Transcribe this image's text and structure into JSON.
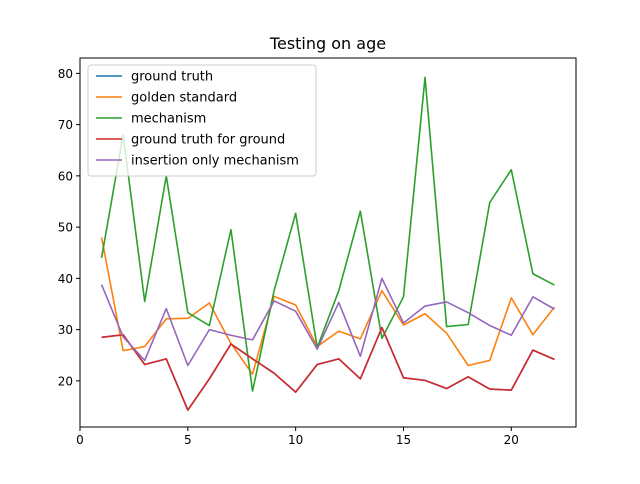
{
  "chart_data": {
    "type": "line",
    "title": "Testing on age",
    "xlabel": "",
    "ylabel": "",
    "xlim": [
      0,
      23
    ],
    "ylim": [
      11,
      83
    ],
    "xticks": [
      0,
      5,
      10,
      15,
      20
    ],
    "yticks": [
      20,
      30,
      40,
      50,
      60,
      70,
      80
    ],
    "grid": false,
    "legend_position": "top-left",
    "x": [
      1,
      2,
      3,
      4,
      5,
      6,
      7,
      8,
      9,
      10,
      11,
      12,
      13,
      14,
      15,
      16,
      17,
      18,
      19,
      20,
      21,
      22
    ],
    "series": [
      {
        "name": "ground truth",
        "color": "#1f77b4",
        "values": [
          28.5,
          29.0,
          23.2,
          24.3,
          14.3,
          20.4,
          27.2,
          24.3,
          21.5,
          17.8,
          23.2,
          24.3,
          20.4,
          30.4,
          20.6,
          20.1,
          18.5,
          20.8,
          18.4,
          18.2,
          26.0,
          24.2
        ]
      },
      {
        "name": "golden standard",
        "color": "#ff7f0e",
        "values": [
          48.0,
          25.9,
          26.7,
          32.1,
          32.2,
          35.2,
          27.3,
          21.3,
          36.5,
          34.8,
          26.7,
          29.7,
          28.2,
          37.6,
          30.9,
          33.1,
          29.3,
          23.0,
          24.0,
          36.2,
          29.0,
          34.4
        ]
      },
      {
        "name": "mechanism",
        "color": "#2ca02c",
        "values": [
          44.0,
          68.0,
          35.5,
          60.0,
          33.3,
          30.8,
          49.5,
          18.0,
          37.6,
          52.7,
          26.5,
          37.6,
          53.1,
          28.3,
          36.4,
          79.2,
          30.6,
          31.0,
          54.8,
          61.2,
          40.9,
          38.7
        ]
      },
      {
        "name": "ground truth for ground",
        "color": "#d62728",
        "values": [
          28.5,
          29.0,
          23.2,
          24.3,
          14.3,
          20.4,
          27.2,
          24.3,
          21.5,
          17.8,
          23.2,
          24.3,
          20.4,
          30.4,
          20.6,
          20.1,
          18.5,
          20.8,
          18.4,
          18.2,
          26.0,
          24.2
        ]
      },
      {
        "name": "insertion only mechanism",
        "color": "#9467bd",
        "values": [
          38.8,
          28.6,
          24.0,
          34.1,
          23.0,
          30.0,
          28.9,
          28.0,
          35.6,
          33.6,
          26.2,
          35.3,
          24.8,
          40.0,
          31.3,
          34.6,
          35.4,
          33.3,
          30.8,
          28.9,
          36.4,
          34.0
        ]
      }
    ]
  }
}
